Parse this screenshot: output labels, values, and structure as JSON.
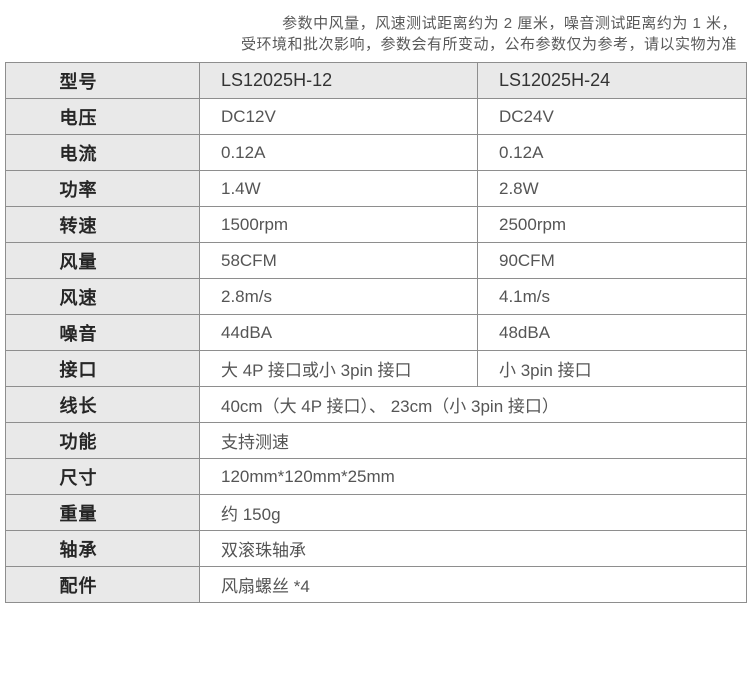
{
  "disclaimer": {
    "line1": "参数中风量，风速测试距离约为 2 厘米，噪音测试距离约为 1 米，",
    "line2": "受环境和批次影响，参数会有所变动，公布参数仅为参考，请以实物为准"
  },
  "table": {
    "rows": [
      {
        "label": "型号",
        "col1": "LS12025H-12",
        "col2": "LS12025H-24"
      },
      {
        "label": "电压",
        "col1": "DC12V",
        "col2": "DC24V"
      },
      {
        "label": "电流",
        "col1": "0.12A",
        "col2": "0.12A"
      },
      {
        "label": "功率",
        "col1": "1.4W",
        "col2": "2.8W"
      },
      {
        "label": "转速",
        "col1": "1500rpm",
        "col2": "2500rpm"
      },
      {
        "label": "风量",
        "col1": "58CFM",
        "col2": "90CFM"
      },
      {
        "label": "风速",
        "col1": "2.8m/s",
        "col2": "4.1m/s"
      },
      {
        "label": "噪音",
        "col1": "44dBA",
        "col2": "48dBA"
      },
      {
        "label": "接口",
        "col1": "大 4P 接口或小 3pin 接口",
        "col2": "小 3pin 接口"
      },
      {
        "label": "线长",
        "span": "40cm（大 4P 接口）、 23cm（小 3pin 接口）"
      },
      {
        "label": "功能",
        "span": "支持测速"
      },
      {
        "label": "尺寸",
        "span": "120mm*120mm*25mm"
      },
      {
        "label": "重量",
        "span": "约 150g"
      },
      {
        "label": "轴承",
        "span": "双滚珠轴承"
      },
      {
        "label": "配件",
        "span": "风扇螺丝 *4"
      }
    ]
  },
  "colors": {
    "label_bg": "#e9e9e9",
    "header_bg": "#e9e9e9",
    "border": "#8e8e8e",
    "label_text": "#262626",
    "value_text": "#555555",
    "header_value_text": "#333333",
    "disclaimer_text": "#595959"
  }
}
